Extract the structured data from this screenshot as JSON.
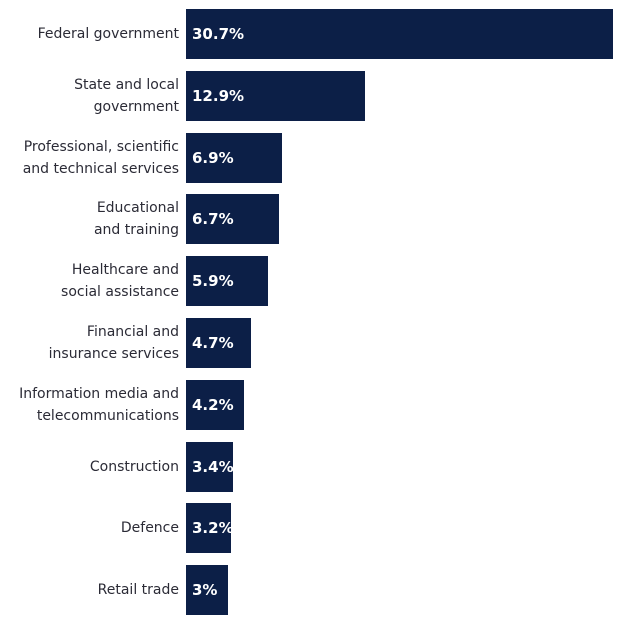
{
  "chart_data": {
    "type": "bar",
    "orientation": "horizontal",
    "categories": [
      "Federal government",
      "State and local\ngovernment",
      "Professional, scientific\nand technical services",
      "Educational\nand training",
      "Healthcare and\nsocial assistance",
      "Financial and\ninsurance services",
      "Information media and\ntelecommunications",
      "Construction",
      "Defence",
      "Retail trade"
    ],
    "values": [
      30.7,
      12.9,
      6.9,
      6.7,
      5.9,
      4.7,
      4.2,
      3.4,
      3.2,
      3
    ],
    "data_labels": [
      "30.7%",
      "12.9%",
      "6.9%",
      "6.7%",
      "5.9%",
      "4.7%",
      "4.2%",
      "3.4%",
      "3.2%",
      "3%"
    ],
    "xlim": [
      0,
      30.7
    ],
    "grid": false,
    "bar_color": "#0c1f47"
  }
}
